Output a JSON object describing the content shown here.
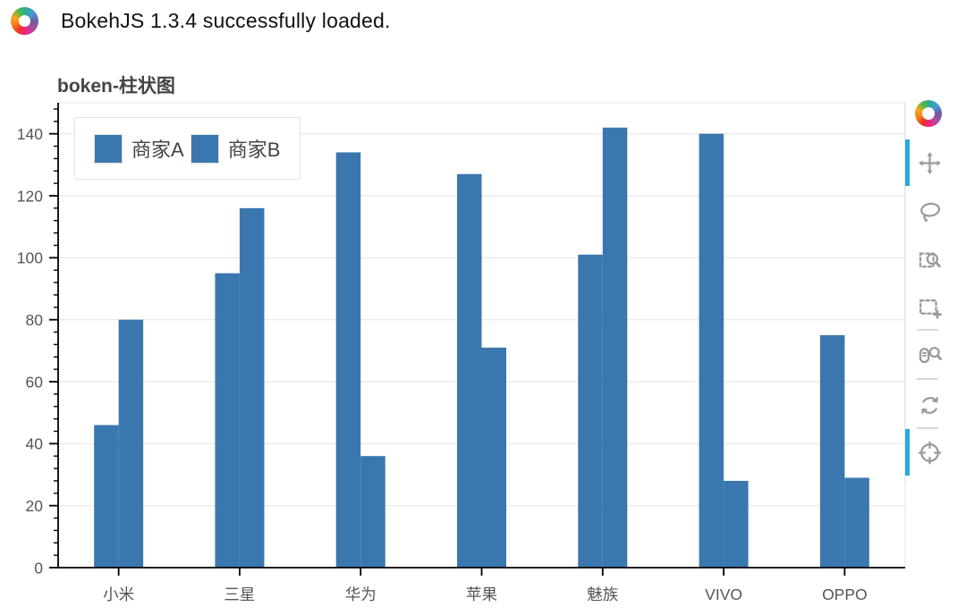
{
  "header": {
    "message": "BokehJS 1.3.4 successfully loaded.",
    "logo": "bokeh-logo"
  },
  "chart_data": {
    "type": "bar",
    "title": "boken-柱状图",
    "categories": [
      "小米",
      "三星",
      "华为",
      "苹果",
      "魅族",
      "VIVO",
      "OPPO"
    ],
    "series": [
      {
        "name": "商家A",
        "values": [
          46,
          95,
          134,
          127,
          101,
          140,
          75
        ],
        "color": "#3A77AE"
      },
      {
        "name": "商家B",
        "values": [
          80,
          116,
          36,
          71,
          142,
          28,
          29
        ],
        "color": "#3A77AE"
      }
    ],
    "xlabel": "",
    "ylabel": "",
    "ylim": [
      0,
      150
    ],
    "yticks": [
      0,
      20,
      40,
      60,
      80,
      100,
      120,
      140
    ],
    "minor_tick_step": 4,
    "grid": "horizontal",
    "legend_position": "top-left"
  },
  "toolbar": {
    "tools": [
      {
        "name": "pan",
        "active": true
      },
      {
        "name": "lasso-select",
        "active": false
      },
      {
        "name": "box-zoom",
        "active": false
      },
      {
        "name": "box-select",
        "active": false
      },
      {
        "name": "wheel-zoom",
        "active": false
      },
      {
        "name": "reset",
        "active": false
      },
      {
        "name": "crosshair",
        "active": true
      }
    ],
    "active_color": "#26AAE1"
  },
  "colors": {
    "bar": "#3A77AE",
    "axis": "#000000",
    "grid": "#ebebeb",
    "frame_outline": "#e5e5e5",
    "tick_label": "#555555",
    "title": "#444444"
  }
}
